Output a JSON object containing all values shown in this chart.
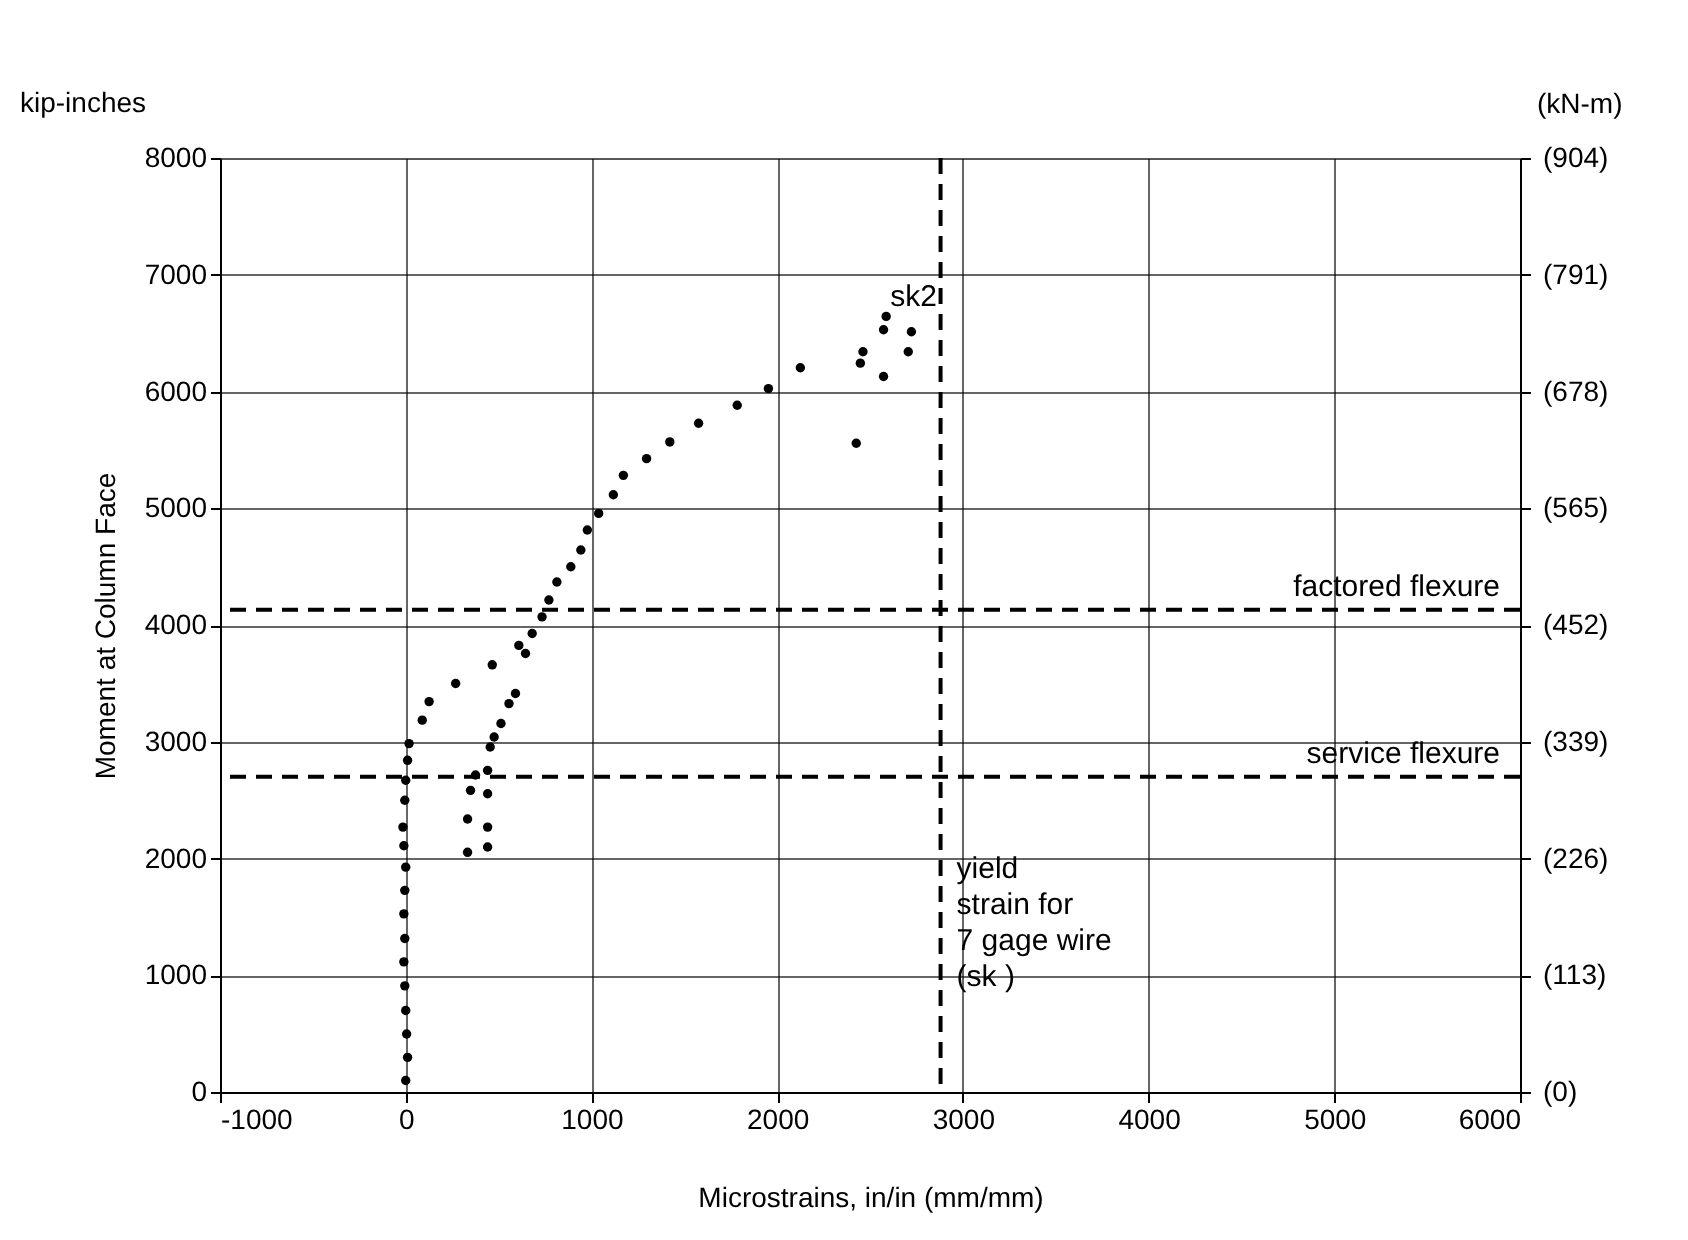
{
  "chart_data": {
    "type": "scatter",
    "xlabel": "Microstrains, in/in (mm/mm)",
    "ylabel": "Moment at Column Face",
    "y2label": "(kN-m)",
    "annotations": [
      "kip-inches",
      {
        "text": "sk2",
        "x": 2587,
        "y": 6643
      }
    ],
    "series": [
      {
        "color": "#000000",
        "x": [
          0,
          10,
          5,
          0,
          -5,
          -10,
          -5,
          -10,
          -5,
          0,
          -10,
          -15,
          -5,
          0,
          10,
          18,
          89,
          126,
          269,
          466,
          609,
          681,
          734,
          771,
          814,
          889,
          943,
          978,
          1039,
          1118,
          1172,
          1297,
          1422,
          1577,
          1785,
          1953,
          2125,
          333,
          333,
          349,
          376,
          441,
          441,
          441,
          441,
          455,
          476,
          513,
          556,
          591,
          645,
          2426,
          2448,
          2462,
          2573,
          2573,
          2587,
          2706,
          2723
        ],
        "values": [
          98,
          297,
          497,
          698,
          909,
          1115,
          1315,
          1526,
          1727,
          1926,
          2109,
          2269,
          2499,
          2670,
          2841,
          2984,
          3185,
          3344,
          3499,
          3659,
          3825,
          3927,
          4070,
          4214,
          4368,
          4499,
          4642,
          4814,
          4956,
          5116,
          5282,
          5425,
          5568,
          5728,
          5882,
          6025,
          6203,
          2053,
          2338,
          2584,
          2715,
          2098,
          2269,
          2555,
          2755,
          2955,
          3041,
          3156,
          3327,
          3413,
          3756,
          5557,
          6243,
          6340,
          6128,
          6529,
          6643,
          6340,
          6512
        ]
      }
    ],
    "xlim": [
      -1000,
      6000
    ],
    "xticks": [
      -1000,
      0,
      1000,
      2000,
      3000,
      4000,
      5000,
      6000
    ],
    "ylim": [
      0,
      8000
    ],
    "yticks": [
      0,
      1000,
      2000,
      3000,
      4000,
      5000,
      6000,
      7000,
      8000
    ],
    "y2lim": [
      0,
      904
    ],
    "y2ticks": [
      {
        "value": 0,
        "label": "(0)"
      },
      {
        "value": 113,
        "label": "(113)"
      },
      {
        "value": 226,
        "label": "(226)"
      },
      {
        "value": 339,
        "label": "(339)"
      },
      {
        "value": 452,
        "label": "(452)"
      },
      {
        "value": 565,
        "label": "(565)"
      },
      {
        "value": 678,
        "label": "(678)"
      },
      {
        "value": 791,
        "label": "(791)"
      },
      {
        "value": 904,
        "label": "(904)"
      }
    ],
    "ref_lines": [
      {
        "axis": "y",
        "value": 4130,
        "label": "factored flexure",
        "color": "#000000",
        "line_style": "dashed"
      },
      {
        "axis": "y",
        "value": 2700,
        "label": "service flexure",
        "color": "#000000",
        "line_style": "dashed"
      },
      {
        "axis": "x",
        "value": 2880,
        "label": "yield\nstrain for\n7 gage wire\n(sk )",
        "color": "#000000",
        "line_style": "dashed"
      }
    ],
    "grid": true,
    "marker": "circle"
  }
}
